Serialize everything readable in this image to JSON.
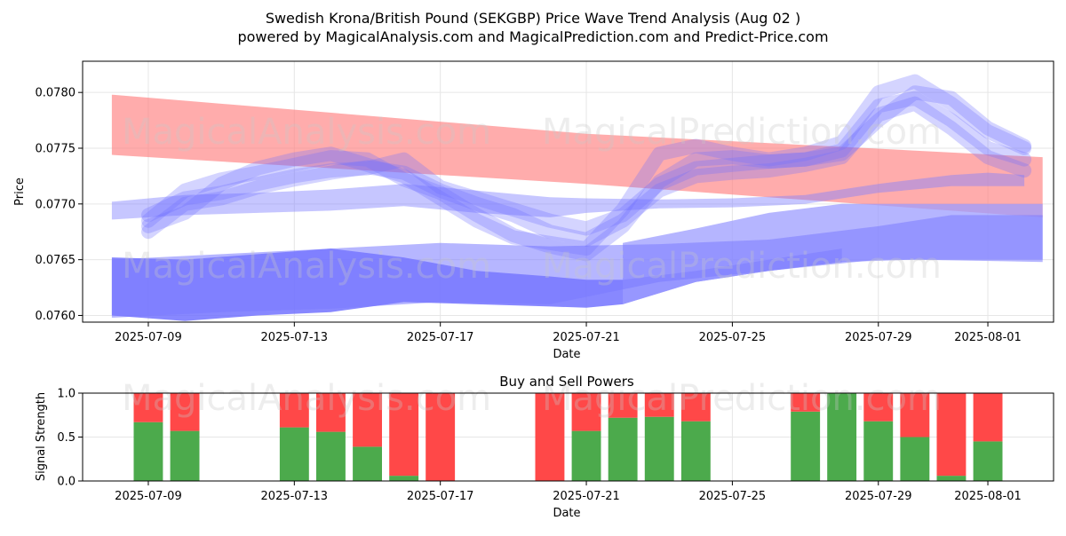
{
  "header": {
    "title_line1": "Swedish Krona/British Pound (SEKGBP) Price Wave Trend Analysis (Aug 02 )",
    "title_line2": "powered by MagicalAnalysis.com and MagicalPrediction.com and Predict-Price.com"
  },
  "watermarks": {
    "a": "MagicalAnalysis.com",
    "b": "MagicalPrediction.com"
  },
  "chart_data": [
    {
      "type": "area",
      "title": "",
      "xlabel": "Date",
      "ylabel": "Price",
      "xlim": [
        -0.8,
        25.8
      ],
      "ylim": [
        0.07594,
        0.07828
      ],
      "x_ticks": [
        1,
        5,
        9,
        13,
        17,
        21,
        24
      ],
      "x_tick_labels": [
        "2025-07-09",
        "2025-07-13",
        "2025-07-17",
        "2025-07-21",
        "2025-07-25",
        "2025-07-29",
        "2025-08-01"
      ],
      "y_ticks": [
        0.076,
        0.0765,
        0.077,
        0.0775,
        0.078
      ],
      "y_tick_labels": [
        "0.0760",
        "0.0765",
        "0.0770",
        "0.0775",
        "0.0780"
      ],
      "grid": true,
      "series": [
        {
          "name": "red-trend-band",
          "color": "#ff8080",
          "opacity": 0.65,
          "x": [
            0,
            13,
            25.5
          ],
          "upper": [
            0.07798,
            0.07763,
            0.07742
          ],
          "lower": [
            0.07744,
            0.07718,
            0.07688
          ]
        },
        {
          "name": "blue-bottom-band-dark",
          "color": "#6a6aff",
          "opacity": 0.8,
          "x": [
            0,
            2,
            4,
            6,
            8,
            10,
            12,
            13,
            14,
            16,
            18,
            20
          ],
          "upper": [
            0.07652,
            0.0765,
            0.07655,
            0.0766,
            0.07652,
            0.0764,
            0.07635,
            0.07632,
            0.07632,
            0.0764,
            0.0765,
            0.0766
          ],
          "lower": [
            0.076,
            0.07595,
            0.076,
            0.07603,
            0.07612,
            0.0761,
            0.07608,
            0.07607,
            0.0761,
            0.0763,
            0.0764,
            0.07648
          ]
        },
        {
          "name": "blue-bottom-band-light",
          "color": "#9c9cff",
          "opacity": 0.75,
          "x": [
            14,
            16,
            18,
            20,
            22,
            25.5
          ],
          "upper": [
            0.07665,
            0.07678,
            0.07692,
            0.077,
            0.077,
            0.077
          ],
          "lower": [
            0.0761,
            0.0763,
            0.0764,
            0.07648,
            0.0765,
            0.07648
          ]
        },
        {
          "name": "blue-mid-band",
          "color": "#7a7aff",
          "opacity": 0.55,
          "x": [
            0,
            3,
            6,
            9,
            12,
            15,
            18,
            21,
            23,
            25.5
          ],
          "upper": [
            0.0765,
            0.07655,
            0.0766,
            0.07665,
            0.07662,
            0.07664,
            0.07668,
            0.0768,
            0.0769,
            0.0769
          ],
          "lower": [
            0.07598,
            0.07603,
            0.07606,
            0.07612,
            0.0761,
            0.0763,
            0.0764,
            0.0765,
            0.0765,
            0.0765
          ]
        },
        {
          "name": "blue-upper-band",
          "color": "#8080ff",
          "opacity": 0.45,
          "x": [
            0,
            2,
            4,
            6,
            8,
            10,
            12,
            13,
            15,
            17,
            19,
            21,
            23,
            24,
            25
          ],
          "upper": [
            0.07702,
            0.07708,
            0.0771,
            0.07713,
            0.07718,
            0.07712,
            0.07706,
            0.07705,
            0.07704,
            0.07705,
            0.07708,
            0.07718,
            0.07726,
            0.07728,
            0.07726
          ],
          "lower": [
            0.07686,
            0.0769,
            0.07692,
            0.07694,
            0.07698,
            0.07692,
            0.07688,
            0.07692,
            0.07696,
            0.07697,
            0.077,
            0.0771,
            0.07716,
            0.07716,
            0.07716
          ]
        },
        {
          "name": "blue-wave-1",
          "color": "#7070ff",
          "opacity": 0.3,
          "x": [
            1,
            2,
            3,
            4,
            5,
            6,
            7,
            8,
            9,
            10,
            11,
            12,
            13,
            14,
            15,
            16,
            17,
            18,
            19,
            20,
            21,
            22,
            23,
            24,
            25
          ],
          "y": [
            0.07685,
            0.07712,
            0.07722,
            0.07728,
            0.07735,
            0.07742,
            0.0774,
            0.07722,
            0.0771,
            0.0769,
            0.07672,
            0.07662,
            0.07655,
            0.0768,
            0.0772,
            0.0774,
            0.07742,
            0.07738,
            0.0774,
            0.07745,
            0.07775,
            0.078,
            0.07795,
            0.07768,
            0.07752
          ]
        },
        {
          "name": "blue-wave-2",
          "color": "#7070ff",
          "opacity": 0.3,
          "x": [
            1,
            2,
            3,
            4,
            5,
            6,
            7,
            8,
            9,
            10,
            11,
            12,
            13,
            14,
            15,
            16,
            17,
            18,
            19,
            20,
            21,
            22,
            23,
            24,
            25
          ],
          "y": [
            0.0768,
            0.07692,
            0.07718,
            0.07732,
            0.0774,
            0.07745,
            0.07735,
            0.07725,
            0.07705,
            0.07685,
            0.0767,
            0.07665,
            0.0766,
            0.07695,
            0.07745,
            0.07752,
            0.07745,
            0.0774,
            0.07745,
            0.07755,
            0.078,
            0.0781,
            0.0779,
            0.07765,
            0.0775
          ]
        },
        {
          "name": "blue-wave-3",
          "color": "#7070ff",
          "opacity": 0.3,
          "x": [
            1,
            2,
            3,
            4,
            5,
            6,
            7,
            8,
            9,
            10,
            11,
            12,
            13,
            14,
            15,
            16,
            17,
            18,
            19,
            20,
            21,
            22,
            23,
            24,
            25
          ],
          "y": [
            0.07675,
            0.077,
            0.07705,
            0.07715,
            0.07722,
            0.07728,
            0.07733,
            0.07728,
            0.07712,
            0.077,
            0.0769,
            0.07675,
            0.07668,
            0.07685,
            0.07712,
            0.07725,
            0.07728,
            0.0773,
            0.07735,
            0.07742,
            0.0778,
            0.0779,
            0.07768,
            0.07742,
            0.0773
          ]
        },
        {
          "name": "blue-wave-4",
          "color": "#7070ff",
          "opacity": 0.3,
          "x": [
            1,
            2,
            3,
            4,
            5,
            6,
            7,
            8,
            9,
            10,
            11,
            12,
            13,
            14,
            15,
            16,
            17,
            18,
            19,
            20,
            21,
            22,
            23,
            24,
            25
          ],
          "y": [
            0.0769,
            0.07705,
            0.0771,
            0.07718,
            0.07725,
            0.0773,
            0.07732,
            0.0774,
            0.07715,
            0.07705,
            0.07695,
            0.07685,
            0.07678,
            0.0769,
            0.07718,
            0.07732,
            0.07735,
            0.07738,
            0.0774,
            0.07748,
            0.07788,
            0.07795,
            0.07775,
            0.0775,
            0.0774
          ]
        }
      ]
    },
    {
      "type": "bar",
      "title": "Buy and Sell Powers",
      "xlabel": "Date",
      "ylabel": "Signal Strength",
      "xlim": [
        -0.8,
        25.8
      ],
      "ylim": [
        0,
        1.0
      ],
      "x_ticks": [
        1,
        5,
        9,
        13,
        17,
        21,
        24
      ],
      "x_tick_labels": [
        "2025-07-09",
        "2025-07-13",
        "2025-07-17",
        "2025-07-21",
        "2025-07-25",
        "2025-07-29",
        "2025-08-01"
      ],
      "y_ticks": [
        0.0,
        0.5,
        1.0
      ],
      "y_tick_labels": [
        "0.0",
        "0.5",
        "1.0"
      ],
      "grid": true,
      "buy_color": "#4caa4c",
      "sell_color": "#ff4848",
      "x": [
        1,
        2,
        5,
        6,
        7,
        8,
        9,
        12,
        13,
        14,
        15,
        16,
        19,
        20,
        21,
        22,
        23,
        24
      ],
      "series": [
        {
          "name": "Buy",
          "values": [
            0.67,
            0.57,
            0.61,
            0.56,
            0.39,
            0.06,
            0.0,
            0.0,
            0.57,
            0.72,
            0.73,
            0.68,
            0.79,
            1.0,
            0.68,
            0.5,
            0.06,
            0.45
          ]
        },
        {
          "name": "Sell",
          "values": [
            0.33,
            0.43,
            0.39,
            0.44,
            0.61,
            0.94,
            1.0,
            1.0,
            0.43,
            0.28,
            0.27,
            0.32,
            0.21,
            0.0,
            0.32,
            0.5,
            0.94,
            0.55
          ]
        }
      ]
    }
  ]
}
